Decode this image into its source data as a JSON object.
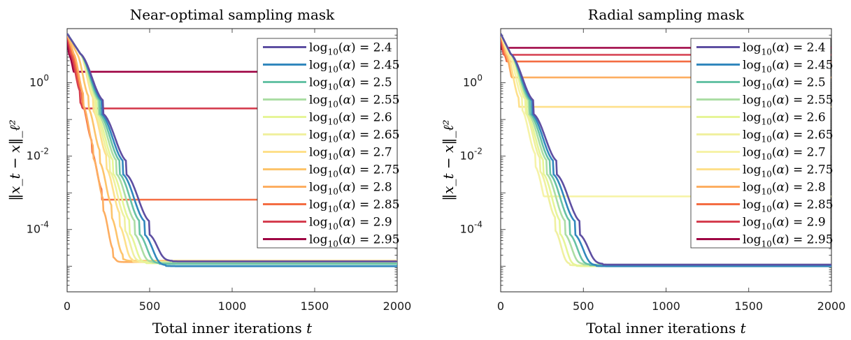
{
  "chart_data": [
    {
      "type": "line",
      "title": "Near-optimal sampling mask",
      "xlabel": "Total inner iterations t",
      "ylabel": "||x_t − x||_ℓ²",
      "ylabel_display": "‖x_t − x‖_ℓ²",
      "xlim": [
        0,
        2000
      ],
      "ylim": [
        2e-06,
        30
      ],
      "y_scale": "log",
      "x_ticks": [
        0,
        500,
        1000,
        1500,
        2000
      ],
      "x_tick_labels": [
        "0",
        "500",
        "1000",
        "1500",
        "2000"
      ],
      "y_ticks": [
        0.0001,
        0.01,
        1
      ],
      "y_tick_labels": [
        "10^-4",
        "10^-2",
        "10^0"
      ],
      "grid": false,
      "legend_position": "top-right",
      "series": [
        {
          "name": "log10(α) = 2.4",
          "label_exp": "2.4",
          "color": "#5e4fa2",
          "converges": true,
          "plateau": 1.35e-05,
          "rate": 85,
          "step": 140,
          "start_iter": 80
        },
        {
          "name": "log10(α) = 2.45",
          "label_exp": "2.45",
          "color": "#3288bd",
          "converges": true,
          "plateau": 1e-05,
          "rate": 79,
          "step": 130,
          "start_iter": 80
        },
        {
          "name": "log10(α) = 2.5",
          "label_exp": "2.5",
          "color": "#66c2a5",
          "converges": true,
          "plateau": 1.15e-05,
          "rate": 73,
          "step": 120,
          "start_iter": 80
        },
        {
          "name": "log10(α) = 2.55",
          "label_exp": "2.55",
          "color": "#abdda4",
          "converges": true,
          "plateau": 1.25e-05,
          "rate": 67,
          "step": 110,
          "start_iter": 80
        },
        {
          "name": "log10(α) = 2.6",
          "label_exp": "2.6",
          "color": "#e6f598",
          "converges": true,
          "plateau": 1.2e-05,
          "rate": 61,
          "step": 100,
          "start_iter": 80
        },
        {
          "name": "log10(α) = 2.65",
          "label_exp": "2.65",
          "color": "#f0f0a0",
          "converges": true,
          "plateau": 1.3e-05,
          "rate": 56,
          "step": 90,
          "start_iter": 80
        },
        {
          "name": "log10(α) = 2.7",
          "label_exp": "2.7",
          "color": "#fee08b",
          "converges": true,
          "plateau": 1.3e-05,
          "rate": 51,
          "step": 80,
          "start_iter": 80
        },
        {
          "name": "log10(α) = 2.75",
          "label_exp": "2.75",
          "color": "#fdc46b",
          "converges": true,
          "plateau": 1.4e-05,
          "rate": 47,
          "step": 70,
          "start_iter": 60
        },
        {
          "name": "log10(α) = 2.8",
          "label_exp": "2.8",
          "color": "#fdae61",
          "converges": true,
          "plateau": 1.3e-05,
          "rate": 42,
          "step": 60,
          "start_iter": 40
        },
        {
          "name": "log10(α) = 2.85",
          "label_exp": "2.85",
          "color": "#f46d43",
          "converges": false,
          "plateau": 0.00065,
          "rate": 45,
          "step": 60,
          "start_iter": 30
        },
        {
          "name": "log10(α) = 2.9",
          "label_exp": "2.9",
          "color": "#d53e4f",
          "converges": false,
          "plateau": 0.2,
          "rate": 45,
          "step": 60,
          "start_iter": 20
        },
        {
          "name": "log10(α) = 2.95",
          "label_exp": "2.95",
          "color": "#9e0142",
          "converges": false,
          "plateau": 2.0,
          "rate": 45,
          "step": 60,
          "start_iter": 10
        }
      ]
    },
    {
      "type": "line",
      "title": "Radial sampling mask",
      "xlabel": "Total inner iterations t",
      "ylabel": "||x_t − x||_ℓ²",
      "ylabel_display": "‖x_t − x‖_ℓ²",
      "xlim": [
        0,
        2000
      ],
      "ylim": [
        2e-06,
        30
      ],
      "y_scale": "log",
      "x_ticks": [
        0,
        500,
        1000,
        1500,
        2000
      ],
      "x_tick_labels": [
        "0",
        "500",
        "1000",
        "1500",
        "2000"
      ],
      "y_ticks": [
        0.0001,
        0.01,
        1
      ],
      "y_tick_labels": [
        "10^-4",
        "10^-2",
        "10^0"
      ],
      "grid": false,
      "legend_position": "top-right",
      "series": [
        {
          "name": "log10(α) = 2.4",
          "label_exp": "2.4",
          "color": "#5e4fa2",
          "converges": true,
          "plateau": 1.1e-05,
          "rate": 85,
          "step": 140,
          "start_iter": 60
        },
        {
          "name": "log10(α) = 2.45",
          "label_exp": "2.45",
          "color": "#3288bd",
          "converges": true,
          "plateau": 1e-05,
          "rate": 79,
          "step": 130,
          "start_iter": 60
        },
        {
          "name": "log10(α) = 2.5",
          "label_exp": "2.5",
          "color": "#66c2a5",
          "converges": true,
          "plateau": 1.05e-05,
          "rate": 73,
          "step": 120,
          "start_iter": 60
        },
        {
          "name": "log10(α) = 2.55",
          "label_exp": "2.55",
          "color": "#abdda4",
          "converges": true,
          "plateau": 1.1e-05,
          "rate": 67,
          "step": 110,
          "start_iter": 60
        },
        {
          "name": "log10(α) = 2.6",
          "label_exp": "2.6",
          "color": "#e6f598",
          "converges": true,
          "plateau": 1e-05,
          "rate": 61,
          "step": 100,
          "start_iter": 60
        },
        {
          "name": "log10(α) = 2.65",
          "label_exp": "2.65",
          "color": "#f0f0a0",
          "converges": true,
          "plateau": 1.05e-05,
          "rate": 56,
          "step": 90,
          "start_iter": 60
        },
        {
          "name": "log10(α) = 2.7",
          "label_exp": "2.7",
          "color": "#f6f3a8",
          "converges": false,
          "plateau": 0.0008,
          "rate": 52,
          "step": 80,
          "start_iter": 50
        },
        {
          "name": "log10(α) = 2.75",
          "label_exp": "2.75",
          "color": "#fee08b",
          "converges": false,
          "plateau": 0.22,
          "rate": 45,
          "step": 70,
          "start_iter": 40
        },
        {
          "name": "log10(α) = 2.8",
          "label_exp": "2.8",
          "color": "#fdae61",
          "converges": false,
          "plateau": 1.4,
          "rate": 45,
          "step": 60,
          "start_iter": 30
        },
        {
          "name": "log10(α) = 2.85",
          "label_exp": "2.85",
          "color": "#f46d43",
          "converges": false,
          "plateau": 3.8,
          "rate": 45,
          "step": 60,
          "start_iter": 20
        },
        {
          "name": "log10(α) = 2.9",
          "label_exp": "2.9",
          "color": "#d53e4f",
          "converges": false,
          "plateau": 5.8,
          "rate": 45,
          "step": 60,
          "start_iter": 15
        },
        {
          "name": "log10(α) = 2.95",
          "label_exp": "2.95",
          "color": "#9e0142",
          "converges": false,
          "plateau": 9.0,
          "rate": 45,
          "step": 60,
          "start_iter": 10
        }
      ]
    }
  ],
  "initial_error": 22
}
